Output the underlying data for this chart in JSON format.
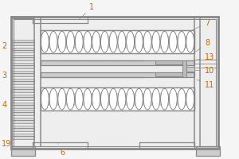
{
  "lc": "#888888",
  "fc": "#cccccc",
  "lw": 0.9,
  "label_fs": 7,
  "label_color": "#cc6600",
  "spring_bg": "#d0d0d0",
  "spring_inner": "#ffffff",
  "fig_bg": "#f5f5f5"
}
